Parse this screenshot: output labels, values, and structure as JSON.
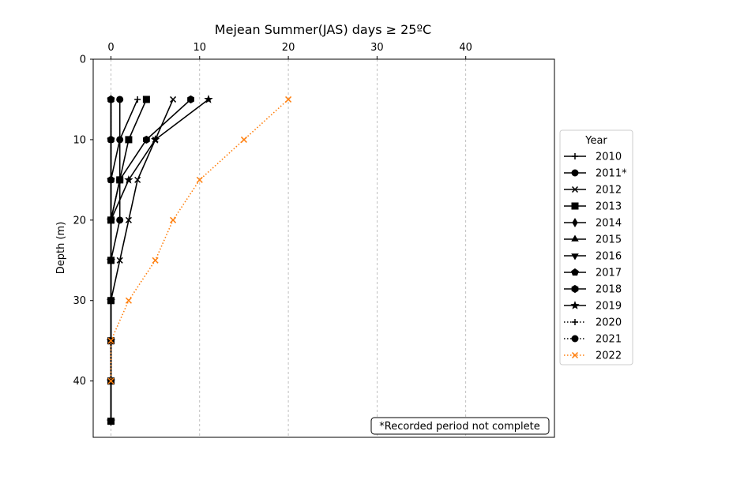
{
  "chart_data": {
    "type": "line",
    "title": "Mejean Summer(JAS) days ≥ 25ºC",
    "xlabel": "",
    "ylabel": "Depth (m)",
    "x_axis_position": "top",
    "y_inverted": true,
    "xlim": [
      -2,
      50
    ],
    "ylim": [
      0,
      47
    ],
    "xticks": [
      0,
      10,
      20,
      30,
      40
    ],
    "yticks": [
      0,
      10,
      20,
      30,
      40
    ],
    "grid": "x-dashed",
    "legend": {
      "title": "Year",
      "placement": "outside-right"
    },
    "annotation": "*Recorded period not complete",
    "series": [
      {
        "name": "2010",
        "marker": "plus",
        "line": "solid",
        "color": "#000000",
        "points": [
          [
            3,
            5
          ],
          [
            1,
            10
          ],
          [
            0,
            15
          ],
          [
            0,
            20
          ],
          [
            0,
            25
          ],
          [
            0,
            30
          ],
          [
            0,
            35
          ],
          [
            0,
            40
          ],
          [
            0,
            45
          ]
        ]
      },
      {
        "name": "2011*",
        "marker": "circle",
        "line": "solid",
        "color": "#000000",
        "points": [
          [
            1,
            5
          ],
          [
            1,
            10
          ],
          [
            1,
            15
          ],
          [
            1,
            20
          ],
          [
            0,
            25
          ],
          [
            0,
            30
          ],
          [
            0,
            35
          ],
          [
            0,
            40
          ],
          [
            0,
            45
          ]
        ]
      },
      {
        "name": "2012",
        "marker": "x",
        "line": "solid",
        "color": "#000000",
        "points": [
          [
            7,
            5
          ],
          [
            5,
            10
          ],
          [
            3,
            15
          ],
          [
            2,
            20
          ],
          [
            1,
            25
          ],
          [
            0,
            30
          ],
          [
            0,
            35
          ],
          [
            0,
            40
          ],
          [
            0,
            45
          ]
        ]
      },
      {
        "name": "2013",
        "marker": "square",
        "line": "solid",
        "color": "#000000",
        "points": [
          [
            4,
            5
          ],
          [
            2,
            10
          ],
          [
            1,
            15
          ],
          [
            0,
            20
          ],
          [
            0,
            25
          ],
          [
            0,
            30
          ],
          [
            0,
            35
          ],
          [
            0,
            40
          ],
          [
            0,
            45
          ]
        ]
      },
      {
        "name": "2014",
        "marker": "diamond",
        "line": "solid",
        "color": "#000000",
        "points": [
          [
            0,
            5
          ],
          [
            0,
            10
          ],
          [
            0,
            15
          ],
          [
            0,
            20
          ],
          [
            0,
            25
          ],
          [
            0,
            30
          ],
          [
            0,
            35
          ],
          [
            0,
            40
          ],
          [
            0,
            45
          ]
        ]
      },
      {
        "name": "2015",
        "marker": "triangle-up",
        "line": "solid",
        "color": "#000000",
        "points": [
          [
            0,
            5
          ],
          [
            0,
            10
          ],
          [
            0,
            15
          ],
          [
            0,
            20
          ],
          [
            0,
            25
          ],
          [
            0,
            30
          ],
          [
            0,
            35
          ],
          [
            0,
            40
          ],
          [
            0,
            45
          ]
        ]
      },
      {
        "name": "2016",
        "marker": "triangle-down",
        "line": "solid",
        "color": "#000000",
        "points": [
          [
            0,
            5
          ],
          [
            0,
            10
          ],
          [
            0,
            15
          ],
          [
            0,
            20
          ],
          [
            0,
            25
          ],
          [
            0,
            30
          ],
          [
            0,
            35
          ],
          [
            0,
            40
          ],
          [
            0,
            45
          ]
        ]
      },
      {
        "name": "2017",
        "marker": "pentagon",
        "line": "solid",
        "color": "#000000",
        "points": [
          [
            0,
            5
          ],
          [
            0,
            10
          ],
          [
            0,
            15
          ],
          [
            0,
            20
          ],
          [
            0,
            25
          ],
          [
            0,
            30
          ],
          [
            0,
            35
          ],
          [
            0,
            40
          ],
          [
            0,
            45
          ]
        ]
      },
      {
        "name": "2018",
        "marker": "hexagon",
        "line": "solid",
        "color": "#000000",
        "points": [
          [
            9,
            5
          ],
          [
            4,
            10
          ],
          [
            1,
            15
          ],
          [
            0,
            20
          ],
          [
            0,
            25
          ],
          [
            0,
            30
          ],
          [
            0,
            35
          ],
          [
            0,
            40
          ],
          [
            0,
            45
          ]
        ]
      },
      {
        "name": "2019",
        "marker": "star",
        "line": "solid",
        "color": "#000000",
        "points": [
          [
            11,
            5
          ],
          [
            5,
            10
          ],
          [
            2,
            15
          ],
          [
            0,
            20
          ],
          [
            0,
            25
          ],
          [
            0,
            30
          ],
          [
            0,
            35
          ],
          [
            0,
            40
          ],
          [
            0,
            45
          ]
        ]
      },
      {
        "name": "2020",
        "marker": "plus",
        "line": "dotted",
        "color": "#000000",
        "points": [
          [
            0,
            5
          ],
          [
            0,
            10
          ],
          [
            0,
            15
          ],
          [
            0,
            20
          ],
          [
            0,
            25
          ],
          [
            0,
            30
          ],
          [
            0,
            35
          ],
          [
            0,
            40
          ]
        ]
      },
      {
        "name": "2021",
        "marker": "circle",
        "line": "dotted",
        "color": "#000000",
        "points": [
          [
            0,
            5
          ],
          [
            0,
            10
          ],
          [
            0,
            15
          ],
          [
            0,
            20
          ],
          [
            0,
            25
          ],
          [
            0,
            30
          ],
          [
            0,
            35
          ],
          [
            0,
            40
          ]
        ]
      },
      {
        "name": "2022",
        "marker": "x",
        "line": "dotted",
        "color": "#ff7f0e",
        "points": [
          [
            20,
            5
          ],
          [
            15,
            10
          ],
          [
            10,
            15
          ],
          [
            7,
            20
          ],
          [
            5,
            25
          ],
          [
            2,
            30
          ],
          [
            0,
            35
          ],
          [
            0,
            40
          ]
        ]
      }
    ]
  }
}
